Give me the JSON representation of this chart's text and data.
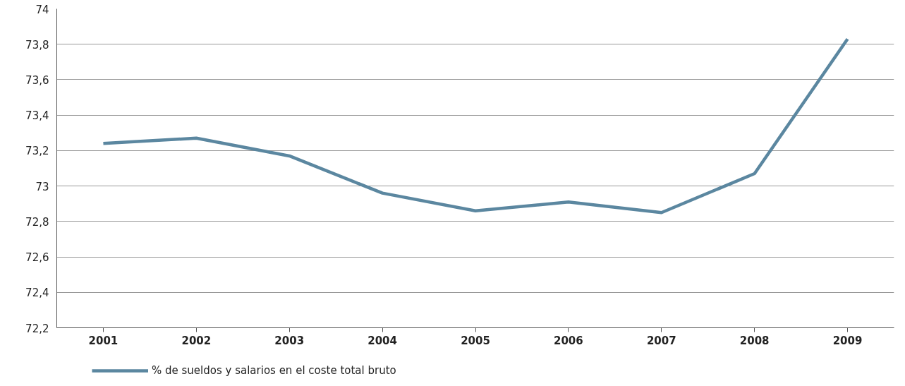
{
  "chart_data": {
    "type": "line",
    "categories": [
      "2001",
      "2002",
      "2003",
      "2004",
      "2005",
      "2006",
      "2007",
      "2008",
      "2009"
    ],
    "series": [
      {
        "name": "% de sueldos y salarios en el coste total bruto",
        "color": "#5b87a0",
        "values": [
          73.24,
          73.27,
          73.17,
          72.96,
          72.86,
          72.91,
          72.85,
          73.07,
          73.83
        ]
      }
    ],
    "ylim": [
      72.2,
      74
    ],
    "yticks": [
      {
        "value": 72.2,
        "label": "72,2"
      },
      {
        "value": 72.4,
        "label": "72,4"
      },
      {
        "value": 72.6,
        "label": "72,6"
      },
      {
        "value": 72.8,
        "label": "72,8"
      },
      73,
      {
        "value": 73.2,
        "label": "73,2"
      },
      {
        "value": 73.4,
        "label": "73,4"
      },
      {
        "value": 73.6,
        "label": "73,6"
      },
      {
        "value": 73.8,
        "label": "73,8"
      },
      74
    ],
    "grid": "y",
    "legend": "bottom",
    "marker": "none",
    "line_style": "solid"
  }
}
